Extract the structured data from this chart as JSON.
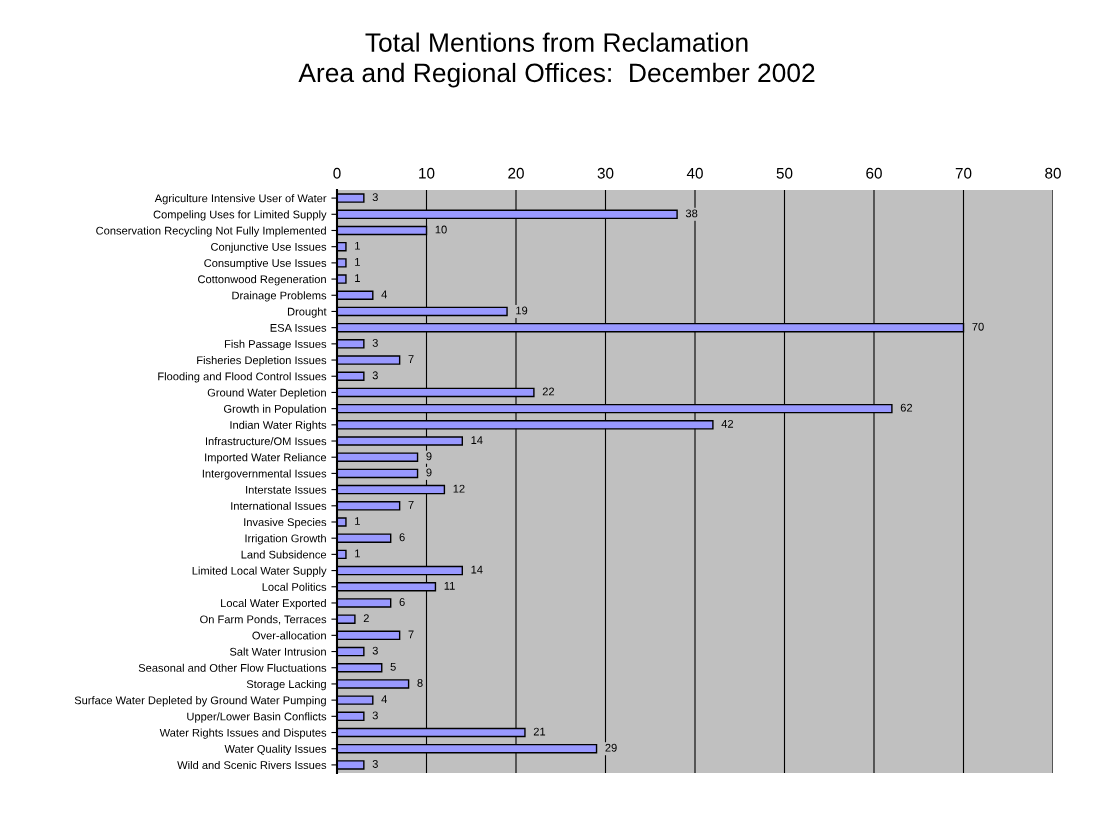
{
  "chart_data": {
    "type": "bar",
    "orientation": "horizontal",
    "title": "Total Mentions from Reclamation\nArea and Regional Offices:  December 2002",
    "categories": [
      "Agriculture Intensive User of Water",
      "Compeling Uses for Limited Supply",
      "Conservation Recycling Not Fully Implemented",
      "Conjunctive Use Issues",
      "Consumptive Use Issues",
      "Cottonwood Regeneration",
      "Drainage Problems",
      "Drought",
      "ESA Issues",
      "Fish Passage Issues",
      "Fisheries Depletion Issues",
      "Flooding and Flood Control Issues",
      "Ground Water Depletion",
      "Growth in Population",
      "Indian Water Rights",
      "Infrastructure/OM Issues",
      "Imported Water Reliance",
      "Intergovernmental Issues",
      "Interstate Issues",
      "International Issues",
      "Invasive Species",
      "Irrigation Growth",
      "Land Subsidence",
      "Limited Local Water Supply",
      "Local Politics",
      "Local Water Exported",
      "On Farm Ponds, Terraces",
      "Over-allocation",
      "Salt Water Intrusion",
      "Seasonal and Other Flow Fluctuations",
      "Storage Lacking",
      "Surface Water Depleted by Ground Water Pumping",
      "Upper/Lower Basin Conflicts",
      "Water Rights Issues and Disputes",
      "Water Quality Issues",
      "Wild and Scenic Rivers Issues"
    ],
    "values": [
      3,
      38,
      10,
      1,
      1,
      1,
      4,
      19,
      70,
      3,
      7,
      3,
      22,
      62,
      42,
      14,
      9,
      9,
      12,
      7,
      1,
      6,
      1,
      14,
      11,
      6,
      2,
      7,
      3,
      5,
      8,
      4,
      3,
      21,
      29,
      3
    ],
    "color": "#9999ff",
    "xlim": [
      0,
      80
    ],
    "xticks": [
      0,
      10,
      20,
      30,
      40,
      50,
      60,
      70,
      80
    ],
    "grid": "x",
    "data_labels": true
  }
}
